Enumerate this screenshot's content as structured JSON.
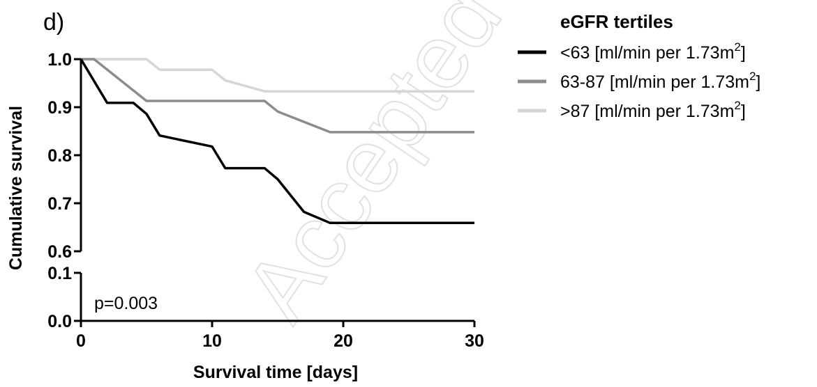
{
  "panel_label": "d)",
  "watermark": "Accepted Manuscript",
  "chart_data": {
    "type": "line",
    "step": true,
    "xlabel": "Survival time [days]",
    "ylabel": "Cumulative survival",
    "xlim": [
      0,
      30
    ],
    "x_ticks": [
      0,
      10,
      20,
      30
    ],
    "y_broken_axis": true,
    "y_upper_range": [
      0.6,
      1.0
    ],
    "y_upper_ticks": [
      "0.6",
      "0.7",
      "0.8",
      "0.9",
      "1.0"
    ],
    "y_lower_range": [
      0.0,
      0.1
    ],
    "y_lower_ticks": [
      "0.0",
      "0.1"
    ],
    "grid": false,
    "legend_position": "top-right",
    "legend_title": "eGFR tertiles",
    "annotation": "p=0.003",
    "series": [
      {
        "name": "<63 [ml/min per 1.73m",
        "name_sup": "2",
        "name_end": "]",
        "color": "#000000",
        "points": [
          [
            0,
            1.0
          ],
          [
            2,
            0.909
          ],
          [
            4,
            0.909
          ],
          [
            5,
            0.886
          ],
          [
            6,
            0.841
          ],
          [
            10,
            0.818
          ],
          [
            11,
            0.773
          ],
          [
            14,
            0.773
          ],
          [
            15,
            0.75
          ],
          [
            17,
            0.682
          ],
          [
            19,
            0.659
          ],
          [
            30,
            0.659
          ]
        ]
      },
      {
        "name": "63-87 [ml/min per 1.73m",
        "name_sup": "2",
        "name_end": "]",
        "color": "#8c8c8c",
        "points": [
          [
            0,
            1.0
          ],
          [
            1,
            1.0
          ],
          [
            5,
            0.913
          ],
          [
            14,
            0.913
          ],
          [
            15,
            0.891
          ],
          [
            19,
            0.848
          ],
          [
            30,
            0.848
          ]
        ]
      },
      {
        "name": ">87 [ml/min per 1.73m",
        "name_sup": "2",
        "name_end": "]",
        "color": "#d6d6d6",
        "points": [
          [
            0,
            1.0
          ],
          [
            5,
            1.0
          ],
          [
            6,
            0.978
          ],
          [
            10,
            0.978
          ],
          [
            11,
            0.956
          ],
          [
            14,
            0.933
          ],
          [
            30,
            0.933
          ]
        ]
      }
    ]
  }
}
